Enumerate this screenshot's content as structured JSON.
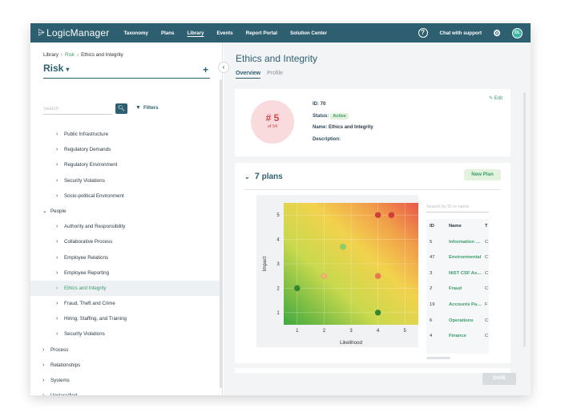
{
  "app": {
    "brand": "LogicManager"
  },
  "nav": {
    "items": [
      {
        "label": "Taxonomy",
        "active": false
      },
      {
        "label": "Plans",
        "active": false
      },
      {
        "label": "Library",
        "active": true
      },
      {
        "label": "Events",
        "active": false
      },
      {
        "label": "Report Portal",
        "active": false
      },
      {
        "label": "Solution Center",
        "active": false
      }
    ],
    "help": "?",
    "support": "Chat with support",
    "avatar": "DL"
  },
  "sidebar": {
    "breadcrumb": [
      "Library",
      "Risk",
      "Ethics and Integrity"
    ],
    "title": "Risk",
    "search_placeholder": "Search",
    "filters_label": "Filters",
    "tree": [
      {
        "label": "Public Infrastructure",
        "level": 1,
        "chevron": "›",
        "selected": false
      },
      {
        "label": "Regulatory Demands",
        "level": 1,
        "chevron": "›",
        "selected": false
      },
      {
        "label": "Regulatory Environment",
        "level": 1,
        "chevron": "›",
        "selected": false
      },
      {
        "label": "Security Violations",
        "level": 1,
        "chevron": "›",
        "selected": false
      },
      {
        "label": "Socio-political Environment",
        "level": 1,
        "chevron": "›",
        "selected": false
      },
      {
        "label": "People",
        "level": 0,
        "chevron": "⌄",
        "selected": false
      },
      {
        "label": "Authority and Responsibility",
        "level": 1,
        "chevron": "›",
        "selected": false
      },
      {
        "label": "Collaborative Process",
        "level": 1,
        "chevron": "›",
        "selected": false
      },
      {
        "label": "Employee Relations",
        "level": 1,
        "chevron": "›",
        "selected": false
      },
      {
        "label": "Employee Reporting",
        "level": 1,
        "chevron": "›",
        "selected": false
      },
      {
        "label": "Ethics and Integrity",
        "level": 1,
        "chevron": "›",
        "selected": true
      },
      {
        "label": "Fraud, Theft and Crime",
        "level": 1,
        "chevron": "›",
        "selected": false
      },
      {
        "label": "Hiring, Staffing, and Training",
        "level": 1,
        "chevron": "›",
        "selected": false
      },
      {
        "label": "Security Violations",
        "level": 1,
        "chevron": "›",
        "selected": false
      },
      {
        "label": "Process",
        "level": 0,
        "chevron": "›",
        "selected": false
      },
      {
        "label": "Relationships",
        "level": 0,
        "chevron": "›",
        "selected": false
      },
      {
        "label": "Systems",
        "level": 0,
        "chevron": "›",
        "selected": false
      },
      {
        "label": "Unclassified",
        "level": 0,
        "chevron": "›",
        "selected": false
      }
    ]
  },
  "main": {
    "title": "Ethics and Integrity",
    "tabs": [
      {
        "label": "Overview",
        "active": true
      },
      {
        "label": "Profile",
        "active": false
      }
    ],
    "summary": {
      "rank": "# 5",
      "rank_of": "of 54",
      "id_label": "ID:",
      "id_value": "70",
      "status_label": "Status:",
      "status_value": "Active",
      "name_label": "Name:",
      "name_value": "Ethics and Integrity",
      "description_label": "Description:",
      "edit_label": "Edit"
    },
    "plans": {
      "count": "7",
      "label": "plans",
      "new_plan_label": "New Plan",
      "table_search_placeholder": "Search by ID or name",
      "columns": [
        "ID",
        "Name",
        "T"
      ],
      "rows": [
        {
          "id": "5",
          "name": "Information Security",
          "t": "C"
        },
        {
          "id": "47",
          "name": "Environmental",
          "t": "C"
        },
        {
          "id": "3",
          "name": "NIST CSF Assessment",
          "t": "C"
        },
        {
          "id": "2",
          "name": "Fraud",
          "t": "C"
        },
        {
          "id": "19",
          "name": "Accounts Payable",
          "t": "F"
        },
        {
          "id": "6",
          "name": "Operations",
          "t": "C"
        },
        {
          "id": "4",
          "name": "Finance",
          "t": "C"
        }
      ]
    },
    "save_label": "SAVE"
  },
  "chart_data": {
    "type": "scatter",
    "xlabel": "Likelihood",
    "ylabel": "Impact",
    "xlim": [
      0.5,
      5.5
    ],
    "ylim": [
      0.5,
      5.5
    ],
    "xticks": [
      "1",
      "2",
      "3",
      "4",
      "5"
    ],
    "yticks": [
      "1",
      "2",
      "3",
      "4",
      "5"
    ],
    "grid": true,
    "background": "heatmap green (low) to red (high)",
    "points": [
      {
        "x": 4.0,
        "y": 5.0,
        "color": "#d63a3a"
      },
      {
        "x": 4.5,
        "y": 5.0,
        "color": "#d63a3a"
      },
      {
        "x": 2.7,
        "y": 3.7,
        "color": "#8ccf6a"
      },
      {
        "x": 2.0,
        "y": 2.5,
        "color": "#f4b373"
      },
      {
        "x": 4.0,
        "y": 2.5,
        "color": "#ea7a52"
      },
      {
        "x": 1.0,
        "y": 2.0,
        "color": "#2f8a2f"
      },
      {
        "x": 4.0,
        "y": 1.0,
        "color": "#2f8a2f"
      }
    ]
  }
}
